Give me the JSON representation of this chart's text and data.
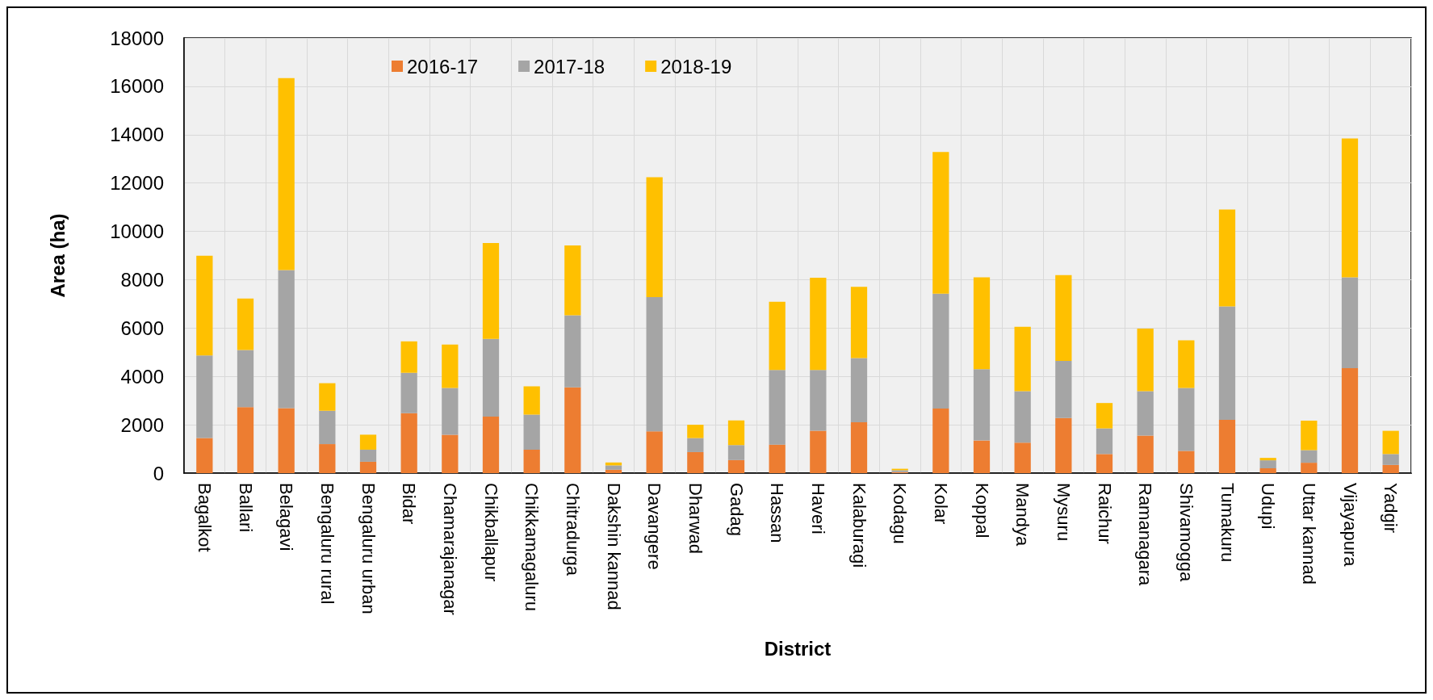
{
  "chart_data": {
    "type": "bar",
    "stacked": true,
    "xlabel": "District",
    "ylabel": "Area (ha)",
    "categories": [
      "Bagalkot",
      "Ballari",
      "Belagavi",
      "Bengaluru rural",
      "Bengaluru urban",
      "Bidar",
      "Chamarajanagar",
      "Chikballapur",
      "Chikkamagaluru",
      "Chitradurga",
      "Dakshin kannad",
      "Davangere",
      "Dharwad",
      "Gadag",
      "Hassan",
      "Haveri",
      "Kalaburagi",
      "Kodagu",
      "Kolar",
      "Koppal",
      "Mandya",
      "Mysuru",
      "Raichur",
      "Ramanagara",
      "Shivamogga",
      "Tumakuru",
      "Udupi",
      "Uttar kannad",
      "Vijayapura",
      "Yadgir"
    ],
    "series": [
      {
        "name": "2016-17",
        "color": "#ed7d31",
        "values": [
          1450,
          2730,
          2690,
          1200,
          470,
          2480,
          1590,
          2340,
          970,
          3550,
          140,
          1730,
          870,
          540,
          1180,
          1750,
          2100,
          40,
          2670,
          1350,
          1260,
          2280,
          790,
          1550,
          920,
          2200,
          200,
          430,
          4340,
          340
        ]
      },
      {
        "name": "2017-18",
        "color": "#a5a5a5",
        "values": [
          3420,
          2360,
          5710,
          1380,
          500,
          1670,
          1930,
          3210,
          1450,
          2980,
          180,
          5550,
          580,
          620,
          3090,
          2520,
          2660,
          80,
          4750,
          2950,
          2130,
          2360,
          1060,
          1840,
          2600,
          4700,
          330,
          520,
          3760,
          450
        ]
      },
      {
        "name": "2018-19",
        "color": "#ffc000",
        "values": [
          4120,
          2130,
          7940,
          1140,
          620,
          1300,
          1800,
          3970,
          1170,
          2890,
          120,
          4960,
          550,
          1020,
          2820,
          3810,
          2950,
          60,
          5860,
          3800,
          2660,
          3550,
          1050,
          2590,
          1970,
          4000,
          100,
          1220,
          5740,
          960
        ]
      }
    ],
    "ylim": [
      0,
      18000
    ],
    "yticks": [
      0,
      2000,
      4000,
      6000,
      8000,
      10000,
      12000,
      14000,
      16000,
      18000
    ],
    "grid": true,
    "legend": "top left"
  }
}
